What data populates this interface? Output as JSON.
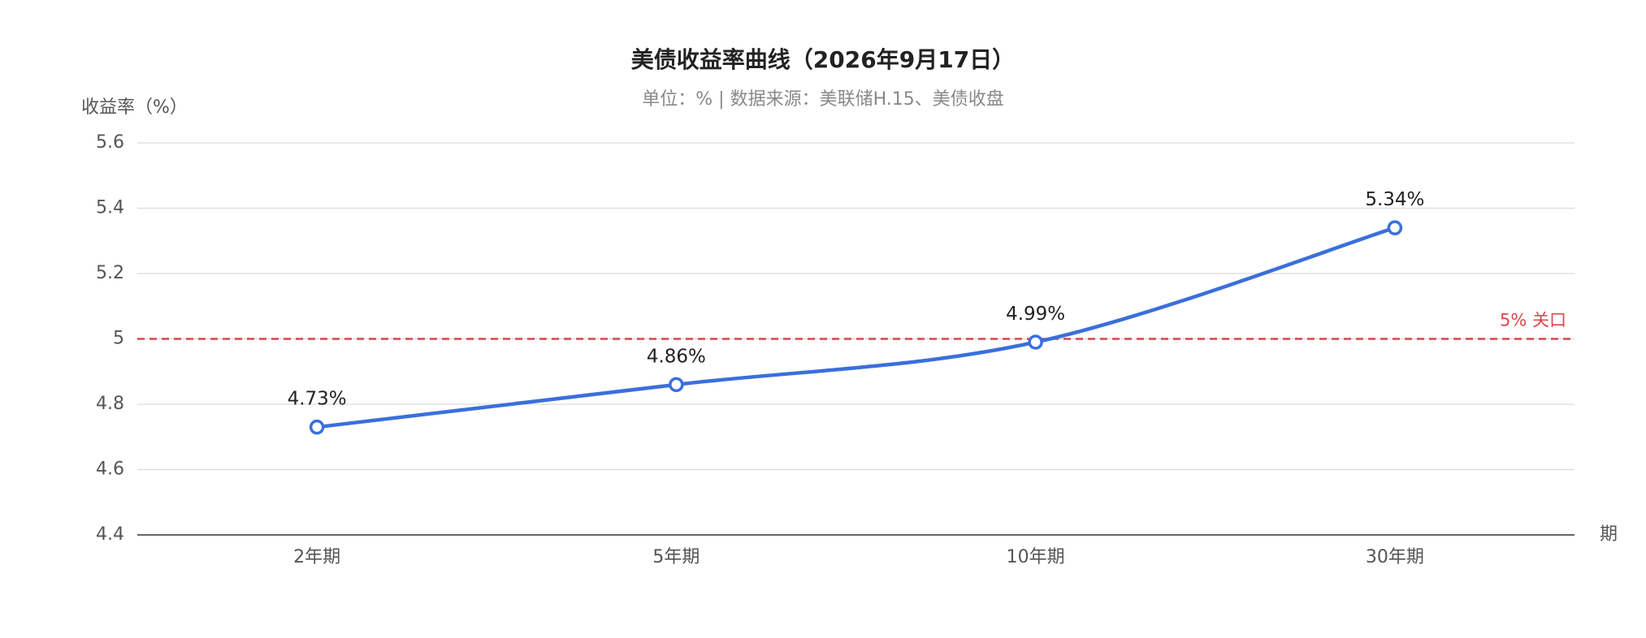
{
  "chart_data": {
    "type": "line",
    "title": "美债收益率曲线（2026年9月17日）",
    "subtitle": "单位：%  |  数据来源：美联储H.15、美债收盘",
    "y_label": "收益率（%）",
    "x_label": "期",
    "categories": [
      "2年期",
      "5年期",
      "10年期",
      "30年期"
    ],
    "values": [
      4.73,
      4.86,
      4.99,
      5.34
    ],
    "value_labels": [
      "4.73%",
      "4.86%",
      "4.99%",
      "5.34%"
    ],
    "color": "#3a6fdc",
    "smooth": true,
    "ylim": [
      4.4,
      5.6
    ],
    "yticks": [
      4.4,
      4.6,
      4.8,
      5,
      5.2,
      5.4,
      5.6
    ],
    "grid": true,
    "markline": {
      "value": 5,
      "label": "5% 关口",
      "color": "#d9464b"
    }
  }
}
